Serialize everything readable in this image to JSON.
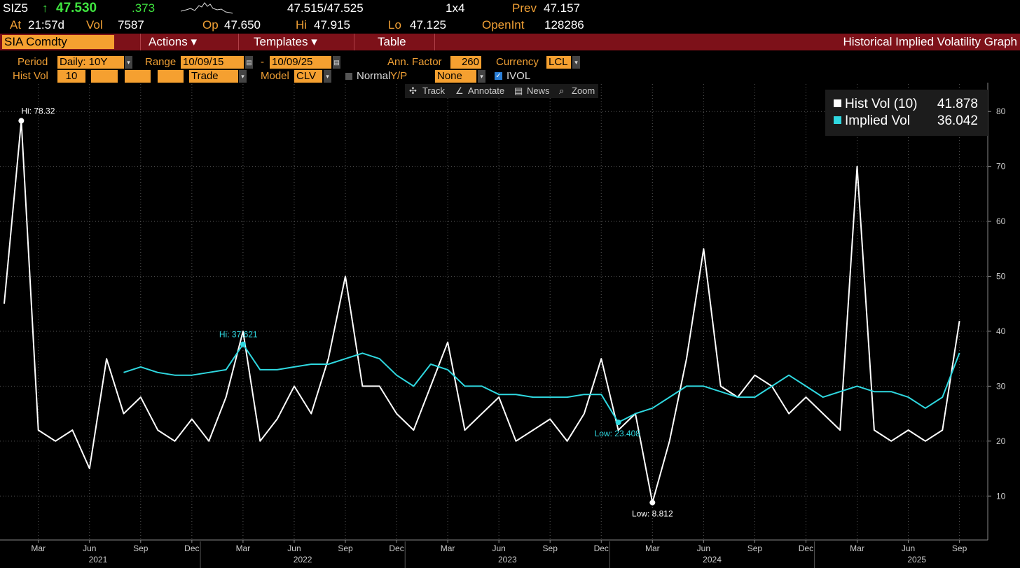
{
  "header": {
    "ticker": "SIZ5",
    "arrow": "↑",
    "last": "47.530",
    "change": ".373",
    "bid_ask": "47.515/47.525",
    "size": "1x4",
    "prev_label": "Prev",
    "prev": "47.157",
    "at_label": "At",
    "time": "21:57d",
    "vol_label": "Vol",
    "vol": "7587",
    "op_label": "Op",
    "op": "47.650",
    "hi_label": "Hi",
    "hi": "47.915",
    "lo_label": "Lo",
    "lo": "47.125",
    "oi_label": "OpenInt",
    "oi": "128286"
  },
  "menu": {
    "security": "SIA Comdty",
    "items": [
      "Actions ▾",
      "Templates ▾",
      "Table"
    ],
    "title": "Historical Implied Volatility Graph"
  },
  "settings": {
    "period_label": "Period",
    "period": "Daily: 10Y",
    "range_label": "Range",
    "range_start": "10/09/15",
    "range_dash": "-",
    "range_end": "10/09/25",
    "ann_factor_label": "Ann. Factor",
    "ann_factor": "260",
    "currency_label": "Currency",
    "currency": "LCL",
    "hist_vol_label": "Hist Vol",
    "hist_vol": "10",
    "price_type": "Trade",
    "model_label": "Model",
    "model": "CLV",
    "normal_label": "Normal",
    "yp_label": "Y/P",
    "yp": "None",
    "ivol_label": "IVOL"
  },
  "toolbar": [
    "Track",
    "Annotate",
    "News",
    "Zoom"
  ],
  "chart_data": {
    "type": "line",
    "x": [
      "2021-01",
      "2021-02",
      "2021-03",
      "2021-04",
      "2021-05",
      "2021-06",
      "2021-07",
      "2021-08",
      "2021-09",
      "2021-10",
      "2021-11",
      "2021-12",
      "2022-01",
      "2022-02",
      "2022-03",
      "2022-04",
      "2022-05",
      "2022-06",
      "2022-07",
      "2022-08",
      "2022-09",
      "2022-10",
      "2022-11",
      "2022-12",
      "2023-01",
      "2023-02",
      "2023-03",
      "2023-04",
      "2023-05",
      "2023-06",
      "2023-07",
      "2023-08",
      "2023-09",
      "2023-10",
      "2023-11",
      "2023-12",
      "2024-01",
      "2024-02",
      "2024-03",
      "2024-04",
      "2024-05",
      "2024-06",
      "2024-07",
      "2024-08",
      "2024-09",
      "2024-10",
      "2024-11",
      "2024-12",
      "2025-01",
      "2025-02",
      "2025-03",
      "2025-04",
      "2025-05",
      "2025-06",
      "2025-07",
      "2025-08",
      "2025-09"
    ],
    "series": [
      {
        "name": "Hist Vol (10)",
        "color": "#ffffff",
        "values": [
          45,
          78.32,
          22,
          20,
          22,
          15,
          35,
          25,
          28,
          22,
          20,
          24,
          20,
          28,
          40,
          20,
          24,
          30,
          25,
          35,
          50,
          30,
          30,
          25,
          22,
          30,
          38,
          22,
          25,
          28,
          20,
          22,
          24,
          20,
          25,
          35,
          22,
          25,
          8.812,
          20,
          35,
          55,
          30,
          28,
          32,
          30,
          25,
          28,
          25,
          22,
          70,
          22,
          20,
          22,
          20,
          22,
          41.878
        ],
        "annotations": {
          "hi": "Hi: 78.32",
          "low": "Low: 8.812"
        }
      },
      {
        "name": "Implied Vol",
        "color": "#2fd8e0",
        "values": [
          null,
          null,
          null,
          null,
          null,
          null,
          null,
          32.5,
          33.5,
          32.5,
          32,
          32,
          32.5,
          33,
          37.621,
          33,
          33,
          33.5,
          34,
          34,
          35,
          36,
          35,
          32,
          30,
          34,
          33,
          30,
          30,
          28.5,
          28.5,
          28,
          28,
          28,
          28.5,
          28.5,
          23.408,
          25,
          26,
          28,
          30,
          30,
          29,
          28,
          28,
          30,
          32,
          30,
          28,
          29,
          30,
          29,
          29,
          28,
          26,
          28,
          36.042
        ],
        "annotations": {
          "hi": "Hi: 37.621",
          "low": "Low: 23.408"
        }
      }
    ],
    "ylim": [
      2,
      85
    ],
    "yticks": [
      10,
      20,
      30,
      40,
      50,
      60,
      70,
      80
    ],
    "xticks": [
      {
        "value": "2021-03",
        "label": "Mar"
      },
      {
        "value": "2021-06",
        "label": "Jun"
      },
      {
        "value": "2021-09",
        "label": "Sep"
      },
      {
        "value": "2021-12",
        "label": "Dec"
      },
      {
        "value": "2022-03",
        "label": "Mar"
      },
      {
        "value": "2022-06",
        "label": "Jun"
      },
      {
        "value": "2022-09",
        "label": "Sep"
      },
      {
        "value": "2022-12",
        "label": "Dec"
      },
      {
        "value": "2023-03",
        "label": "Mar"
      },
      {
        "value": "2023-06",
        "label": "Jun"
      },
      {
        "value": "2023-09",
        "label": "Sep"
      },
      {
        "value": "2023-12",
        "label": "Dec"
      },
      {
        "value": "2024-03",
        "label": "Mar"
      },
      {
        "value": "2024-06",
        "label": "Jun"
      },
      {
        "value": "2024-09",
        "label": "Sep"
      },
      {
        "value": "2024-12",
        "label": "Dec"
      },
      {
        "value": "2025-03",
        "label": "Mar"
      },
      {
        "value": "2025-06",
        "label": "Jun"
      },
      {
        "value": "2025-09",
        "label": "Sep"
      }
    ],
    "year_labels": [
      "2021",
      "2022",
      "2023",
      "2024",
      "2025"
    ],
    "grid": true,
    "legend": "top-right"
  }
}
